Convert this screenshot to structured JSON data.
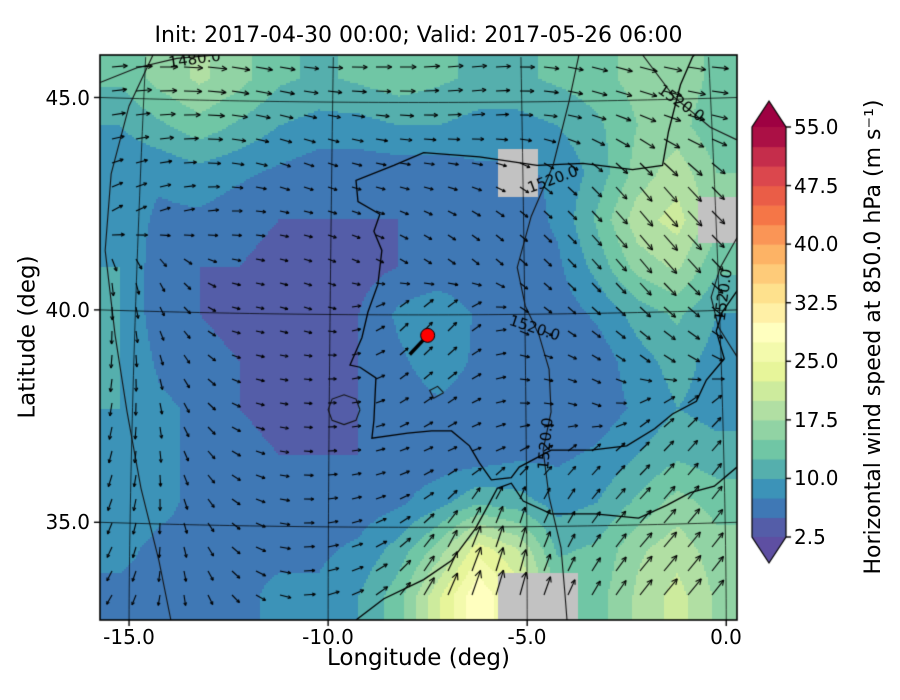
{
  "title": "Init: 2017-04-30 00:00; Valid: 2017-05-26 06:00",
  "axes": {
    "xlabel": "Longitude (deg)",
    "ylabel": "Latitude (deg)",
    "xlim": [
      -15.73,
      0.27
    ],
    "ylim": [
      32.7,
      46.0
    ],
    "xtick_values": [
      -15,
      -10,
      -5,
      0
    ],
    "xtick_labels": [
      "-15.0",
      "-10.0",
      "-5.0",
      "0.0"
    ],
    "ytick_values": [
      35,
      40,
      45
    ],
    "ytick_labels": [
      "35.0",
      "40.0",
      "45.0"
    ]
  },
  "colorbar": {
    "label": "Horizontal wind speed at 850.0 hPa (m s⁻¹)",
    "tick_values": [
      2.5,
      10.0,
      17.5,
      25.0,
      32.5,
      40.0,
      47.5,
      55.0
    ],
    "tick_labels_desc": [
      "55.0",
      "47.5",
      "40.0",
      "32.5",
      "25.0",
      "17.5",
      "10.0",
      "2.5"
    ],
    "vmin": 2.5,
    "vmax": 55.0,
    "level_step": 2.5,
    "extend": "both",
    "spectral_r": [
      "#5e4fa2",
      "#3288bd",
      "#66c2a5",
      "#abdda4",
      "#e6f598",
      "#ffffbf",
      "#fee08b",
      "#fdae61",
      "#f46d43",
      "#d53e4f",
      "#9e0142"
    ],
    "masked_color": "#c2c2c2"
  },
  "marker": {
    "lon": -7.5,
    "lat": 39.4,
    "color": "#ff0000",
    "trail_dlon": -0.45,
    "trail_dlat": -0.45
  },
  "chart_data": {
    "type": "heatmap",
    "overlays": [
      "wind-arrow-quiver",
      "line-contours",
      "coastlines",
      "graticule"
    ],
    "grid_lon_range": [
      -15.73,
      0.27
    ],
    "grid_lat_range": [
      32.7,
      46.0
    ],
    "speed_grid": [
      [
        13,
        16,
        18,
        16,
        13,
        12,
        13,
        14,
        13,
        12,
        12,
        13,
        14,
        16,
        17,
        14
      ],
      [
        10,
        12,
        14,
        12,
        10,
        9,
        9,
        10,
        10,
        9,
        9,
        10,
        12,
        15,
        16,
        13
      ],
      [
        8,
        8,
        9,
        8,
        7,
        6,
        6,
        6,
        6,
        7,
        7,
        8,
        11,
        16,
        19,
        15
      ],
      [
        9,
        7,
        7,
        6,
        5,
        5,
        5,
        5,
        5,
        6,
        6,
        8,
        13,
        19,
        21,
        16
      ],
      [
        10,
        6,
        5,
        5,
        4,
        4,
        4,
        5,
        5,
        5,
        6,
        7,
        11,
        16,
        18,
        13
      ],
      [
        10,
        6,
        5,
        4,
        4,
        4,
        5,
        8,
        10,
        7,
        6,
        6,
        8,
        11,
        13,
        10
      ],
      [
        10,
        7,
        6,
        5,
        4,
        4,
        5,
        7,
        9,
        7,
        6,
        5,
        6,
        9,
        11,
        9
      ],
      [
        10,
        8,
        7,
        5,
        4,
        4,
        5,
        6,
        7,
        6,
        6,
        5,
        6,
        8,
        10,
        9
      ],
      [
        9,
        8,
        7,
        6,
        5,
        5,
        5,
        6,
        6,
        6,
        7,
        7,
        8,
        10,
        12,
        11
      ],
      [
        9,
        8,
        7,
        6,
        6,
        6,
        6,
        7,
        9,
        12,
        11,
        9,
        10,
        13,
        16,
        14
      ],
      [
        8,
        7,
        7,
        7,
        7,
        7,
        8,
        11,
        16,
        24,
        20,
        12,
        13,
        17,
        19,
        16
      ],
      [
        7,
        7,
        7,
        7,
        8,
        8,
        10,
        14,
        22,
        30,
        24,
        15,
        14,
        18,
        21,
        17
      ]
    ],
    "direction_deg_grid": [
      [
        5,
        0,
        355,
        350,
        350,
        355,
        0,
        0,
        5,
        5,
        0,
        350,
        345,
        345,
        350,
        355
      ],
      [
        10,
        5,
        0,
        350,
        345,
        345,
        350,
        355,
        0,
        5,
        0,
        350,
        340,
        335,
        340,
        345
      ],
      [
        20,
        10,
        0,
        350,
        340,
        340,
        345,
        350,
        350,
        345,
        330,
        320,
        315,
        310,
        312,
        315
      ],
      [
        30,
        20,
        10,
        0,
        350,
        345,
        340,
        335,
        330,
        325,
        320,
        315,
        312,
        310,
        312,
        315
      ],
      [
        280,
        300,
        330,
        350,
        345,
        340,
        335,
        330,
        325,
        320,
        318,
        315,
        312,
        310,
        312,
        314
      ],
      [
        270,
        295,
        325,
        350,
        345,
        340,
        20,
        45,
        50,
        35,
        330,
        320,
        318,
        318,
        320,
        322
      ],
      [
        265,
        285,
        315,
        345,
        350,
        355,
        15,
        40,
        45,
        30,
        350,
        340,
        330,
        325,
        330,
        335
      ],
      [
        260,
        280,
        310,
        340,
        350,
        0,
        10,
        30,
        35,
        25,
        0,
        350,
        340,
        30,
        40,
        45
      ],
      [
        255,
        275,
        305,
        335,
        350,
        0,
        10,
        20,
        25,
        20,
        30,
        40,
        45,
        45,
        48,
        50
      ],
      [
        250,
        270,
        300,
        330,
        350,
        5,
        15,
        25,
        40,
        60,
        70,
        60,
        50,
        48,
        50,
        52
      ],
      [
        245,
        265,
        295,
        325,
        350,
        10,
        20,
        40,
        60,
        70,
        75,
        65,
        55,
        50,
        50,
        52
      ],
      [
        240,
        260,
        290,
        320,
        345,
        15,
        25,
        50,
        65,
        72,
        75,
        68,
        58,
        52,
        50,
        52
      ]
    ],
    "masked_cells": [
      [
        2,
        10
      ],
      [
        3,
        15
      ],
      [
        11,
        10
      ],
      [
        11,
        11
      ]
    ],
    "contours": [
      {
        "label": "1480.0",
        "points": [
          [
            -15.73,
            45.35
          ],
          [
            -14.8,
            45.7
          ],
          [
            -13.8,
            45.92
          ],
          [
            -12.8,
            46.0
          ]
        ],
        "labels": [
          {
            "at": [
              -13.35,
              45.88
            ],
            "rot": 8
          }
        ]
      },
      {
        "label": "1520.0",
        "points": [
          [
            -3.7,
            46.0
          ],
          [
            -3.95,
            44.9
          ],
          [
            -4.35,
            43.4
          ],
          [
            -4.9,
            42.2
          ],
          [
            -5.25,
            41.0
          ],
          [
            -5.05,
            40.1
          ],
          [
            -4.7,
            39.4
          ],
          [
            -4.45,
            38.6
          ],
          [
            -4.4,
            37.6
          ],
          [
            -4.6,
            36.7
          ],
          [
            -4.45,
            35.6
          ],
          [
            -4.15,
            34.4
          ],
          [
            -4.05,
            33.3
          ],
          [
            -4.0,
            32.7
          ]
        ],
        "labels": [
          {
            "at": [
              -4.35,
              43.05
            ],
            "rot": 20
          },
          {
            "at": [
              -4.82,
              39.55
            ],
            "rot": -18
          },
          {
            "at": [
              -4.52,
              36.85
            ],
            "rot": 85
          }
        ]
      },
      {
        "label": "1520.0",
        "points": [
          [
            0.27,
            41.7
          ],
          [
            -0.15,
            41.0
          ],
          [
            -0.38,
            40.3
          ],
          [
            -0.2,
            39.6
          ],
          [
            0.1,
            39.15
          ],
          [
            0.27,
            38.9
          ]
        ],
        "labels": [
          {
            "at": [
              -0.05,
              40.35
            ],
            "rot": 82
          }
        ]
      },
      {
        "label": "1520.0",
        "points": [
          [
            -14.4,
            46.0
          ],
          [
            -15.0,
            44.8
          ],
          [
            -15.45,
            43.2
          ],
          [
            -15.6,
            41.4
          ],
          [
            -15.35,
            39.4
          ],
          [
            -15.05,
            37.6
          ],
          [
            -14.7,
            35.8
          ],
          [
            -14.25,
            34.1
          ],
          [
            -13.95,
            32.7
          ]
        ],
        "labels": []
      },
      {
        "label": "1520.0",
        "points": [
          [
            -2.1,
            46.0
          ],
          [
            -1.3,
            45.0
          ],
          [
            -0.4,
            44.3
          ],
          [
            0.27,
            44.0
          ]
        ],
        "labels": [
          {
            "at": [
              -1.15,
              44.85
            ],
            "rot": -35
          }
        ]
      },
      {
        "label": "",
        "points": [
          [
            -9.2,
            37.65
          ],
          [
            -9.3,
            37.9
          ],
          [
            -9.6,
            38.0
          ],
          [
            -9.9,
            37.9
          ],
          [
            -10.0,
            37.65
          ],
          [
            -9.9,
            37.4
          ],
          [
            -9.6,
            37.3
          ],
          [
            -9.3,
            37.4
          ],
          [
            -9.2,
            37.65
          ]
        ],
        "labels": []
      },
      {
        "label": "",
        "points": [
          [
            -7.1,
            38.05
          ],
          [
            -7.25,
            38.2
          ],
          [
            -7.45,
            38.1
          ],
          [
            -7.35,
            37.92
          ],
          [
            -7.1,
            38.05
          ]
        ],
        "labels": []
      }
    ],
    "coastlines": [
      [
        [
          0.27,
          40.45
        ],
        [
          -0.1,
          39.95
        ],
        [
          -0.25,
          39.5
        ],
        [
          -0.05,
          38.85
        ],
        [
          -0.5,
          38.35
        ],
        [
          -0.75,
          37.85
        ],
        [
          -1.35,
          37.55
        ],
        [
          -1.8,
          37.2
        ],
        [
          -2.5,
          36.8
        ],
        [
          -3.4,
          36.7
        ],
        [
          -4.4,
          36.7
        ],
        [
          -5.2,
          36.3
        ],
        [
          -5.4,
          36.05
        ],
        [
          -5.9,
          36.0
        ],
        [
          -6.2,
          36.4
        ],
        [
          -6.45,
          36.8
        ],
        [
          -6.9,
          37.15
        ],
        [
          -7.4,
          37.15
        ],
        [
          -8.0,
          37.1
        ],
        [
          -8.9,
          36.98
        ],
        [
          -8.85,
          37.4
        ],
        [
          -8.8,
          38.4
        ],
        [
          -9.2,
          38.65
        ],
        [
          -9.45,
          38.7
        ],
        [
          -9.15,
          39.35
        ],
        [
          -9.0,
          39.95
        ],
        [
          -8.75,
          40.6
        ],
        [
          -8.65,
          41.4
        ],
        [
          -8.85,
          41.85
        ],
        [
          -8.7,
          42.25
        ],
        [
          -9.25,
          42.55
        ],
        [
          -9.3,
          43.05
        ],
        [
          -8.35,
          43.4
        ],
        [
          -7.6,
          43.7
        ],
        [
          -6.2,
          43.6
        ],
        [
          -4.75,
          43.4
        ],
        [
          -3.6,
          43.45
        ],
        [
          -2.35,
          43.3
        ],
        [
          -1.6,
          43.4
        ],
        [
          -1.45,
          44.2
        ],
        [
          -1.15,
          45.3
        ],
        [
          -0.85,
          45.95
        ],
        [
          -0.8,
          46.0
        ]
      ],
      [
        [
          -9.3,
          32.7
        ],
        [
          -8.6,
          33.2
        ],
        [
          -7.6,
          33.65
        ],
        [
          -6.9,
          34.1
        ],
        [
          -6.3,
          34.85
        ],
        [
          -5.95,
          35.45
        ],
        [
          -5.75,
          35.8
        ],
        [
          -5.4,
          35.92
        ],
        [
          -5.1,
          35.5
        ],
        [
          -4.4,
          35.2
        ],
        [
          -3.3,
          35.2
        ],
        [
          -2.2,
          35.1
        ],
        [
          -1.5,
          35.4
        ],
        [
          -0.9,
          35.7
        ],
        [
          -0.3,
          35.85
        ],
        [
          0.27,
          36.3
        ]
      ]
    ]
  }
}
